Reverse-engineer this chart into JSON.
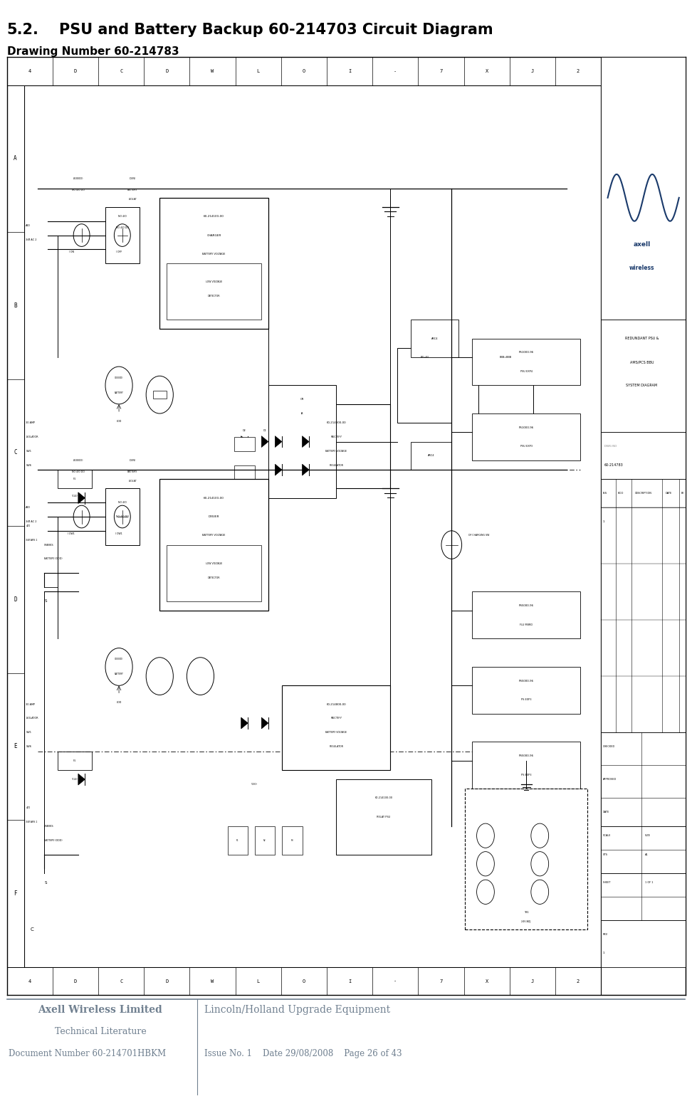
{
  "title_num": "5.2.",
  "title_text": "PSU and Battery Backup 60-214703 Circuit Diagram",
  "subtitle": "Drawing Number 60-214783",
  "title_fontsize": 15,
  "subtitle_fontsize": 11,
  "bg_color": "#ffffff",
  "footer_line_color": "#708090",
  "footer_company": "Axell Wireless Limited",
  "footer_type": "Technical Literature",
  "footer_doc": "Document Number 60-214701HBKM",
  "footer_project": "Lincoln/Holland Upgrade Equipment",
  "footer_issue": "Issue No. 1",
  "footer_date": "Date 29/08/2008",
  "footer_page": "Page 26 of 43",
  "footer_color": "#708090",
  "col_labels": [
    "4",
    "D",
    "C",
    "D",
    "W",
    "L",
    "O",
    "I",
    "-",
    "7",
    "X",
    "J",
    "2"
  ],
  "row_labels": [
    "A",
    "B",
    "C",
    "D",
    "E",
    "F"
  ],
  "right_panel_texts": {
    "title1": "REDUNDANT PSU &",
    "title2": "AMS/PCS BBU",
    "title3": "SYSTEM DIAGRAM",
    "dwg_num": "60-214783"
  }
}
